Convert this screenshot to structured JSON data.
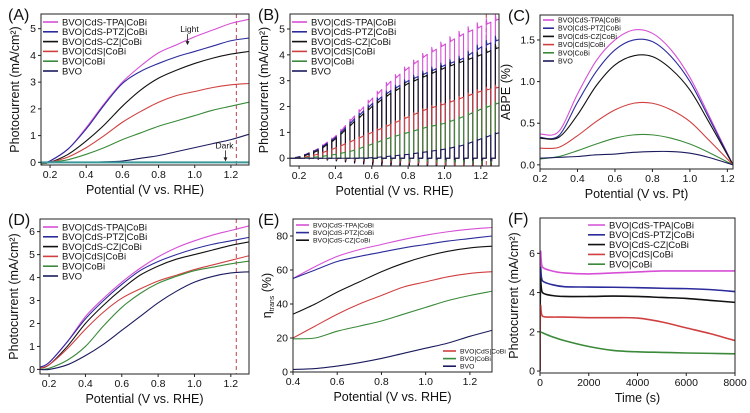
{
  "colors": {
    "BVO|CdS-TPA|CoBi": "#d64fd6",
    "BVO|CdS-PTZ|CoBi": "#2b2b9c",
    "BVO|CdS-CZ|CoBi": "#111111",
    "BVO|CdS|CoBi": "#d04040",
    "BVO|CoBi": "#3a8a3a",
    "BVO": "#1b1b5e",
    "dark": "#3a9a9a",
    "dashed": "#c0404a"
  },
  "chart_data": [
    {
      "id": "A",
      "panel_label": "(A)",
      "type": "line",
      "xlabel": "Potential (V vs. RHE)",
      "ylabel": "Photocurrent (mA/cm²)",
      "xlim": [
        0.15,
        1.3
      ],
      "ylim": [
        -0.1,
        5.55
      ],
      "xticks": [
        0.2,
        0.4,
        0.6,
        0.8,
        1.0,
        1.2
      ],
      "xtick_labels": [
        "0.2",
        "0.4",
        "0.6",
        "0.8",
        "1.0",
        "1.2"
      ],
      "yticks": [
        0,
        1,
        2,
        3,
        4,
        5
      ],
      "ytick_labels": [
        "0",
        "1",
        "2",
        "3",
        "4",
        "5"
      ],
      "vline": 1.23,
      "legend": "top-left",
      "annotations": [
        {
          "text": "Light",
          "x": 0.96,
          "y": 4.35,
          "arrow": "down"
        },
        {
          "text": "Dark",
          "x": 1.17,
          "y": 0.0,
          "arrow": "down"
        }
      ],
      "x": [
        0.15,
        0.2,
        0.3,
        0.4,
        0.5,
        0.6,
        0.7,
        0.8,
        0.9,
        1.0,
        1.1,
        1.2,
        1.3
      ],
      "series": [
        {
          "name": "BVO|CdS-TPA|CoBi",
          "values": [
            -0.05,
            0.05,
            0.5,
            1.3,
            2.2,
            3.0,
            3.6,
            4.1,
            4.4,
            4.7,
            4.95,
            5.2,
            5.35
          ]
        },
        {
          "name": "BVO|CdS-PTZ|CoBi",
          "values": [
            -0.05,
            0.05,
            0.5,
            1.25,
            2.15,
            2.95,
            3.4,
            3.7,
            3.95,
            4.15,
            4.35,
            4.55,
            4.65
          ]
        },
        {
          "name": "BVO|CdS-CZ|CoBi",
          "values": [
            -0.05,
            0.0,
            0.3,
            0.8,
            1.4,
            2.1,
            2.7,
            3.15,
            3.45,
            3.7,
            3.9,
            4.05,
            4.15
          ]
        },
        {
          "name": "BVO|CdS|CoBi",
          "values": [
            -0.05,
            0.0,
            0.2,
            0.55,
            1.0,
            1.5,
            1.9,
            2.25,
            2.5,
            2.65,
            2.8,
            2.9,
            2.95
          ]
        },
        {
          "name": "BVO|CoBi",
          "values": [
            -0.05,
            0.0,
            0.1,
            0.3,
            0.55,
            0.85,
            1.1,
            1.35,
            1.55,
            1.75,
            1.95,
            2.1,
            2.25
          ]
        },
        {
          "name": "BVO",
          "values": [
            -0.02,
            0.0,
            0.0,
            0.0,
            0.02,
            0.05,
            0.15,
            0.25,
            0.4,
            0.55,
            0.7,
            0.85,
            1.05
          ]
        },
        {
          "name": "dark",
          "legend": false,
          "values": [
            0,
            0,
            0,
            0,
            0,
            0,
            0,
            0,
            0,
            0,
            0,
            0,
            0
          ]
        }
      ]
    },
    {
      "id": "B",
      "panel_label": "(B)",
      "type": "line",
      "chopped": true,
      "chop_start": 0.18,
      "chop_step": 0.05,
      "xlabel": "Potential (V vs. RHE)",
      "ylabel": "Photocurrent (mA/cm²)",
      "xlim": [
        0.15,
        1.3
      ],
      "ylim": [
        -0.3,
        5.58
      ],
      "xticks": [
        0.2,
        0.4,
        0.6,
        0.8,
        1.0,
        1.2
      ],
      "xtick_labels": [
        "0.2",
        "0.4",
        "0.6",
        "0.8",
        "1.0",
        "1.2"
      ],
      "yticks": [
        0,
        1,
        2,
        3,
        4,
        5
      ],
      "ytick_labels": [
        "0",
        "1",
        "2",
        "3",
        "4",
        "5"
      ],
      "vline": 1.23,
      "legend": "top-left",
      "x": [
        0.15,
        0.2,
        0.3,
        0.4,
        0.5,
        0.6,
        0.7,
        0.8,
        0.9,
        1.0,
        1.1,
        1.2,
        1.3
      ],
      "series": [
        {
          "name": "BVO|CdS-TPA|CoBi",
          "values": [
            0,
            0.05,
            0.35,
            0.85,
            1.6,
            2.3,
            2.95,
            3.5,
            4.0,
            4.4,
            4.8,
            5.1,
            5.4
          ]
        },
        {
          "name": "BVO|CdS-PTZ|CoBi",
          "values": [
            0,
            0.05,
            0.33,
            0.8,
            1.5,
            2.1,
            2.6,
            3.0,
            3.3,
            3.6,
            3.85,
            4.3,
            4.6
          ]
        },
        {
          "name": "BVO|CdS-CZ|CoBi",
          "values": [
            0,
            0.03,
            0.28,
            0.75,
            1.4,
            2.0,
            2.5,
            2.9,
            3.2,
            3.5,
            3.75,
            4.0,
            4.3
          ]
        },
        {
          "name": "BVO|CdS|CoBi",
          "values": [
            0,
            0.0,
            0.15,
            0.4,
            0.7,
            1.0,
            1.3,
            1.6,
            1.9,
            2.1,
            2.35,
            2.6,
            2.75
          ]
        },
        {
          "name": "BVO|CoBi",
          "values": [
            0,
            0.0,
            0.05,
            0.15,
            0.3,
            0.55,
            0.8,
            1.0,
            1.2,
            1.35,
            1.6,
            1.9,
            2.15
          ]
        },
        {
          "name": "BVO",
          "values": [
            0,
            0,
            0,
            0,
            0,
            0.02,
            0.08,
            0.15,
            0.25,
            0.35,
            0.5,
            0.75,
            1.0
          ]
        }
      ]
    },
    {
      "id": "C",
      "panel_label": "(C)",
      "type": "line",
      "xlabel": "Potential (V vs. Pt)",
      "ylabel": "ABPE (%)",
      "xlim": [
        0.2,
        1.23
      ],
      "ylim": [
        -0.05,
        1.8
      ],
      "xticks": [
        0.2,
        0.4,
        0.6,
        0.8,
        1.0,
        1.2
      ],
      "xtick_labels": [
        "0.2",
        "0.4",
        "0.6",
        "0.8",
        "1.0",
        "1.2"
      ],
      "yticks": [
        0,
        0.5,
        1.0,
        1.5
      ],
      "ytick_labels": [
        "0.0",
        "0.5",
        "1.0",
        "1.5"
      ],
      "legend": "top-left",
      "small_legend": true,
      "x": [
        0.2,
        0.3,
        0.4,
        0.5,
        0.6,
        0.7,
        0.8,
        0.9,
        1.0,
        1.1,
        1.23
      ],
      "series": [
        {
          "name": "BVO|CdS-TPA|CoBi",
          "values": [
            0.37,
            0.4,
            0.85,
            1.25,
            1.5,
            1.62,
            1.58,
            1.38,
            1.05,
            0.6,
            0
          ]
        },
        {
          "name": "BVO|CdS-PTZ|CoBi",
          "values": [
            0.33,
            0.35,
            0.75,
            1.12,
            1.38,
            1.5,
            1.48,
            1.3,
            1.0,
            0.57,
            0
          ]
        },
        {
          "name": "BVO|CdS-CZ|CoBi",
          "values": [
            0.32,
            0.33,
            0.6,
            0.95,
            1.2,
            1.31,
            1.3,
            1.15,
            0.9,
            0.52,
            0
          ]
        },
        {
          "name": "BVO|CdS|CoBi",
          "values": [
            0.2,
            0.21,
            0.35,
            0.52,
            0.66,
            0.74,
            0.74,
            0.66,
            0.52,
            0.3,
            0
          ]
        },
        {
          "name": "BVO|CoBi",
          "values": [
            0.07,
            0.1,
            0.17,
            0.25,
            0.32,
            0.36,
            0.36,
            0.32,
            0.25,
            0.15,
            0
          ]
        },
        {
          "name": "BVO",
          "values": [
            0.08,
            0.09,
            0.1,
            0.12,
            0.13,
            0.15,
            0.16,
            0.16,
            0.14,
            0.09,
            0
          ]
        }
      ]
    },
    {
      "id": "D",
      "panel_label": "(D)",
      "type": "line",
      "xlabel": "Potential (V vs. RHE)",
      "ylabel": "Photocurrent (mA/cm²)",
      "xlim": [
        0.15,
        1.3
      ],
      "ylim": [
        -0.2,
        6.55
      ],
      "xticks": [
        0.2,
        0.4,
        0.6,
        0.8,
        1.0,
        1.2
      ],
      "xtick_labels": [
        "0.2",
        "0.4",
        "0.6",
        "0.8",
        "1.0",
        "1.2"
      ],
      "yticks": [
        0,
        1,
        2,
        3,
        4,
        5,
        6
      ],
      "ytick_labels": [
        "0",
        "1",
        "2",
        "3",
        "4",
        "5",
        "6"
      ],
      "vline": 1.23,
      "legend": "top-left",
      "x": [
        0.15,
        0.2,
        0.3,
        0.4,
        0.5,
        0.6,
        0.7,
        0.8,
        0.9,
        1.0,
        1.1,
        1.2,
        1.3
      ],
      "series": [
        {
          "name": "BVO|CdS-TPA|CoBi",
          "values": [
            0.1,
            0.3,
            1.2,
            2.3,
            3.1,
            3.8,
            4.4,
            4.9,
            5.3,
            5.6,
            5.85,
            6.05,
            6.25
          ]
        },
        {
          "name": "BVO|CdS-PTZ|CoBi",
          "values": [
            0.1,
            0.3,
            1.2,
            2.2,
            3.0,
            3.7,
            4.3,
            4.7,
            5.0,
            5.25,
            5.45,
            5.6,
            5.75
          ]
        },
        {
          "name": "BVO|CdS-CZ|CoBi",
          "values": [
            0.05,
            0.2,
            1.0,
            2.0,
            2.8,
            3.5,
            4.1,
            4.5,
            4.8,
            5.0,
            5.2,
            5.4,
            5.55
          ]
        },
        {
          "name": "BVO|CdS|CoBi",
          "values": [
            0.05,
            0.2,
            0.9,
            1.75,
            2.5,
            3.1,
            3.5,
            3.85,
            4.1,
            4.35,
            4.55,
            4.75,
            4.95
          ]
        },
        {
          "name": "BVO|CoBi",
          "values": [
            0,
            0.05,
            0.4,
            1.0,
            1.9,
            2.7,
            3.3,
            3.75,
            4.05,
            4.3,
            4.45,
            4.6,
            4.72
          ]
        },
        {
          "name": "BVO",
          "values": [
            0,
            0,
            0.2,
            0.6,
            1.1,
            1.7,
            2.3,
            2.9,
            3.4,
            3.8,
            4.05,
            4.2,
            4.25
          ]
        }
      ]
    },
    {
      "id": "E",
      "panel_label": "(E)",
      "type": "line",
      "xlabel": "Potential (V vs. RHE)",
      "ylabel": "η",
      "ylabel_sub": "trans",
      "ylabel_suffix": " (%)",
      "xlim": [
        0.4,
        1.3
      ],
      "ylim": [
        0,
        90
      ],
      "xticks": [
        0.4,
        0.6,
        0.8,
        1.0,
        1.2
      ],
      "xtick_labels": [
        "0.4",
        "0.6",
        "0.8",
        "1.0",
        "1.2"
      ],
      "yticks": [
        0,
        20,
        40,
        60,
        80
      ],
      "ytick_labels": [
        "0",
        "20",
        "40",
        "60",
        "80"
      ],
      "legend": "split: top-left (first 3), bottom-right (last 3)",
      "small_legend": true,
      "x": [
        0.4,
        0.5,
        0.6,
        0.7,
        0.8,
        0.9,
        1.0,
        1.1,
        1.2,
        1.3
      ],
      "series": [
        {
          "name": "BVO|CdS-TPA|CoBi",
          "values": [
            55,
            62,
            68,
            72,
            75,
            78,
            80.5,
            82.5,
            84,
            85
          ]
        },
        {
          "name": "BVO|CdS-PTZ|CoBi",
          "values": [
            55,
            60,
            65,
            68,
            70.5,
            73,
            75,
            77,
            78.5,
            80
          ]
        },
        {
          "name": "BVO|CdS-CZ|CoBi",
          "values": [
            34,
            40,
            47,
            53,
            59,
            64,
            68,
            71,
            73,
            74
          ]
        },
        {
          "name": "BVO|CdS|CoBi",
          "values": [
            20,
            27,
            34,
            40,
            45,
            50,
            53,
            56,
            58,
            59
          ]
        },
        {
          "name": "BVO|CoBi",
          "values": [
            19.5,
            20,
            24,
            27,
            30,
            34,
            38,
            42,
            45,
            47.5
          ]
        },
        {
          "name": "BVO",
          "values": [
            1.5,
            2,
            3.5,
            5.5,
            8,
            11,
            14,
            17,
            21,
            24.5
          ]
        }
      ]
    },
    {
      "id": "F",
      "panel_label": "(F)",
      "type": "line",
      "xlabel": "Time (s)",
      "ylabel": "Photocurrent (mA/cm²)",
      "xlim": [
        0,
        8000
      ],
      "ylim": [
        -0.1,
        7.8
      ],
      "xticks": [
        0,
        2000,
        4000,
        6000,
        8000
      ],
      "xtick_labels": [
        "0",
        "2000",
        "4000",
        "6000",
        "8000"
      ],
      "yticks": [
        0,
        2,
        4,
        6
      ],
      "ytick_labels": [
        "0",
        "2",
        "4",
        "6"
      ],
      "legend": "top-center",
      "x": [
        0,
        20,
        100,
        500,
        1000,
        2000,
        3000,
        4000,
        5000,
        6000,
        7000,
        8000
      ],
      "series": [
        {
          "name": "BVO|CdS-TPA|CoBi",
          "values": [
            0,
            5.8,
            5.3,
            5.1,
            5.0,
            4.95,
            5.0,
            5.05,
            5.1,
            5.1,
            5.1,
            5.1
          ]
        },
        {
          "name": "BVO|CdS-PTZ|CoBi",
          "values": [
            0,
            5.0,
            4.6,
            4.4,
            4.3,
            4.28,
            4.27,
            4.25,
            4.22,
            4.2,
            4.15,
            4.05
          ]
        },
        {
          "name": "BVO|CdS-CZ|CoBi",
          "values": [
            0,
            4.5,
            4.0,
            3.85,
            3.8,
            3.8,
            3.82,
            3.8,
            3.75,
            3.7,
            3.6,
            3.5
          ]
        },
        {
          "name": "BVO|CdS|CoBi",
          "values": [
            0,
            3.2,
            2.8,
            2.75,
            2.75,
            2.72,
            2.72,
            2.7,
            2.5,
            2.2,
            1.9,
            1.55
          ]
        },
        {
          "name": "BVO|CoBi",
          "values": [
            2.05,
            2.0,
            1.95,
            1.75,
            1.55,
            1.25,
            1.05,
            0.98,
            0.95,
            0.92,
            0.9,
            0.88
          ]
        }
      ]
    }
  ]
}
